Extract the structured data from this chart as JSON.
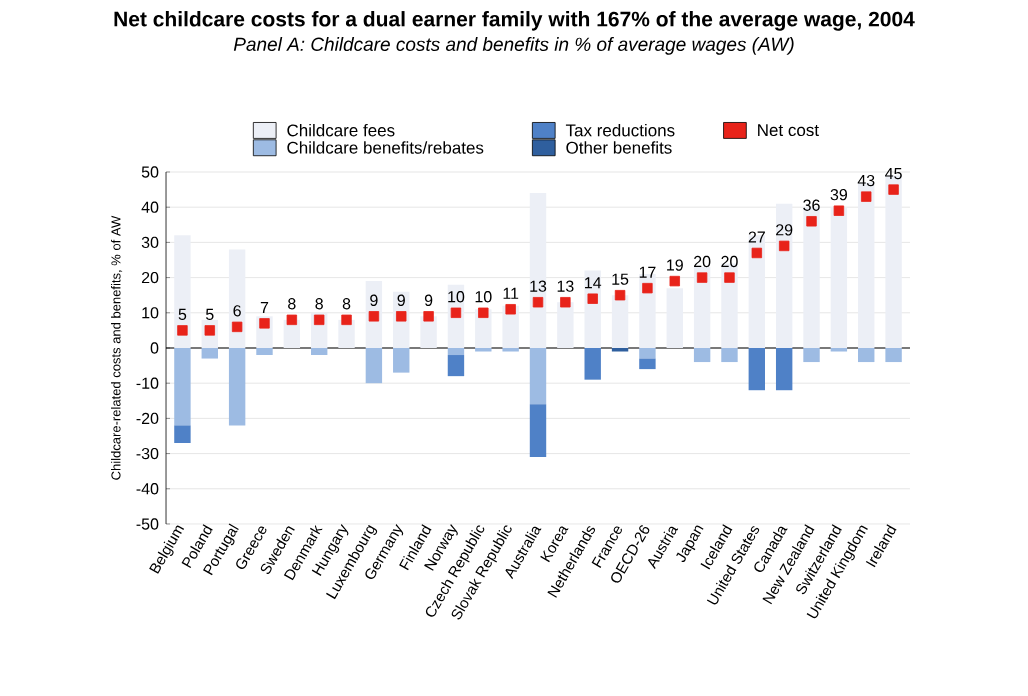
{
  "chart_data": {
    "type": "bar",
    "stacked": true,
    "title": "Net childcare costs for a dual earner family with 167% of the average wage, 2004",
    "subtitle": "Panel A: Childcare costs and benefits in % of average wages (AW)",
    "ylabel": "Childcare-related costs and benefits, % of AW",
    "categories": [
      "Belgium",
      "Poland",
      "Portugal",
      "Greece",
      "Sweden",
      "Denmark",
      "Hungary",
      "Luxembourg",
      "Germany",
      "Finland",
      "Norway",
      "Czech Republic",
      "Slovak Republic",
      "Australia",
      "Korea",
      "Netherlands",
      "France",
      "OECD-26",
      "Austria",
      "Japan",
      "Iceland",
      "United States",
      "Canada",
      "New Zealand",
      "Switzerland",
      "United Kingdom",
      "Ireland"
    ],
    "series": [
      {
        "name": "Childcare fees",
        "color": "#eceff6",
        "values": [
          32,
          8,
          28,
          9,
          8,
          10,
          8,
          19,
          16,
          9,
          18,
          11,
          12,
          44,
          13,
          22,
          15,
          21,
          17,
          23,
          24,
          32,
          41,
          40,
          40,
          47,
          49
        ]
      },
      {
        "name": "Childcare benefits/rebates",
        "color": "#9dbbe3",
        "values": [
          -22,
          -3,
          -22,
          -2,
          null,
          -2,
          null,
          -10,
          -7,
          null,
          -2,
          -1,
          -1,
          -16,
          null,
          null,
          null,
          -3,
          null,
          -4,
          -4,
          null,
          null,
          -4,
          -1,
          -4,
          -4
        ]
      },
      {
        "name": "Tax reductions",
        "color": "#4f81c7",
        "values": [
          -5,
          null,
          null,
          null,
          null,
          null,
          null,
          null,
          null,
          null,
          -6,
          null,
          null,
          -15,
          null,
          -9,
          null,
          -3,
          null,
          null,
          null,
          -12,
          -12,
          null,
          null,
          null,
          null
        ]
      },
      {
        "name": "Other benefits",
        "color": "#2f5f9e",
        "values": [
          null,
          null,
          null,
          null,
          null,
          null,
          null,
          null,
          null,
          null,
          null,
          null,
          null,
          null,
          null,
          null,
          -1,
          null,
          null,
          null,
          null,
          null,
          null,
          null,
          null,
          null,
          null
        ]
      },
      {
        "name": "Net cost",
        "type": "scatter",
        "color": "#e8231a",
        "values": [
          5,
          5,
          6,
          7,
          8,
          8,
          8,
          9,
          9,
          9,
          10,
          10,
          11,
          13,
          13,
          14,
          15,
          17,
          19,
          20,
          20,
          27,
          29,
          36,
          39,
          43,
          45
        ],
        "value_labels": [
          "5",
          "5",
          "6",
          "7",
          "8",
          "8",
          "8",
          "9",
          "9",
          "9",
          "10",
          "10",
          "11",
          "13",
          "13",
          "14",
          "15",
          "17",
          "19",
          "20",
          "20",
          "27",
          "29",
          "36",
          "39",
          "43",
          "45"
        ]
      }
    ],
    "ylim": [
      -50,
      50
    ],
    "yticks": [
      -50,
      -40,
      -30,
      -20,
      -10,
      0,
      10,
      20,
      30,
      40,
      50
    ],
    "grid": "y",
    "legend": "top",
    "marker": "square"
  }
}
